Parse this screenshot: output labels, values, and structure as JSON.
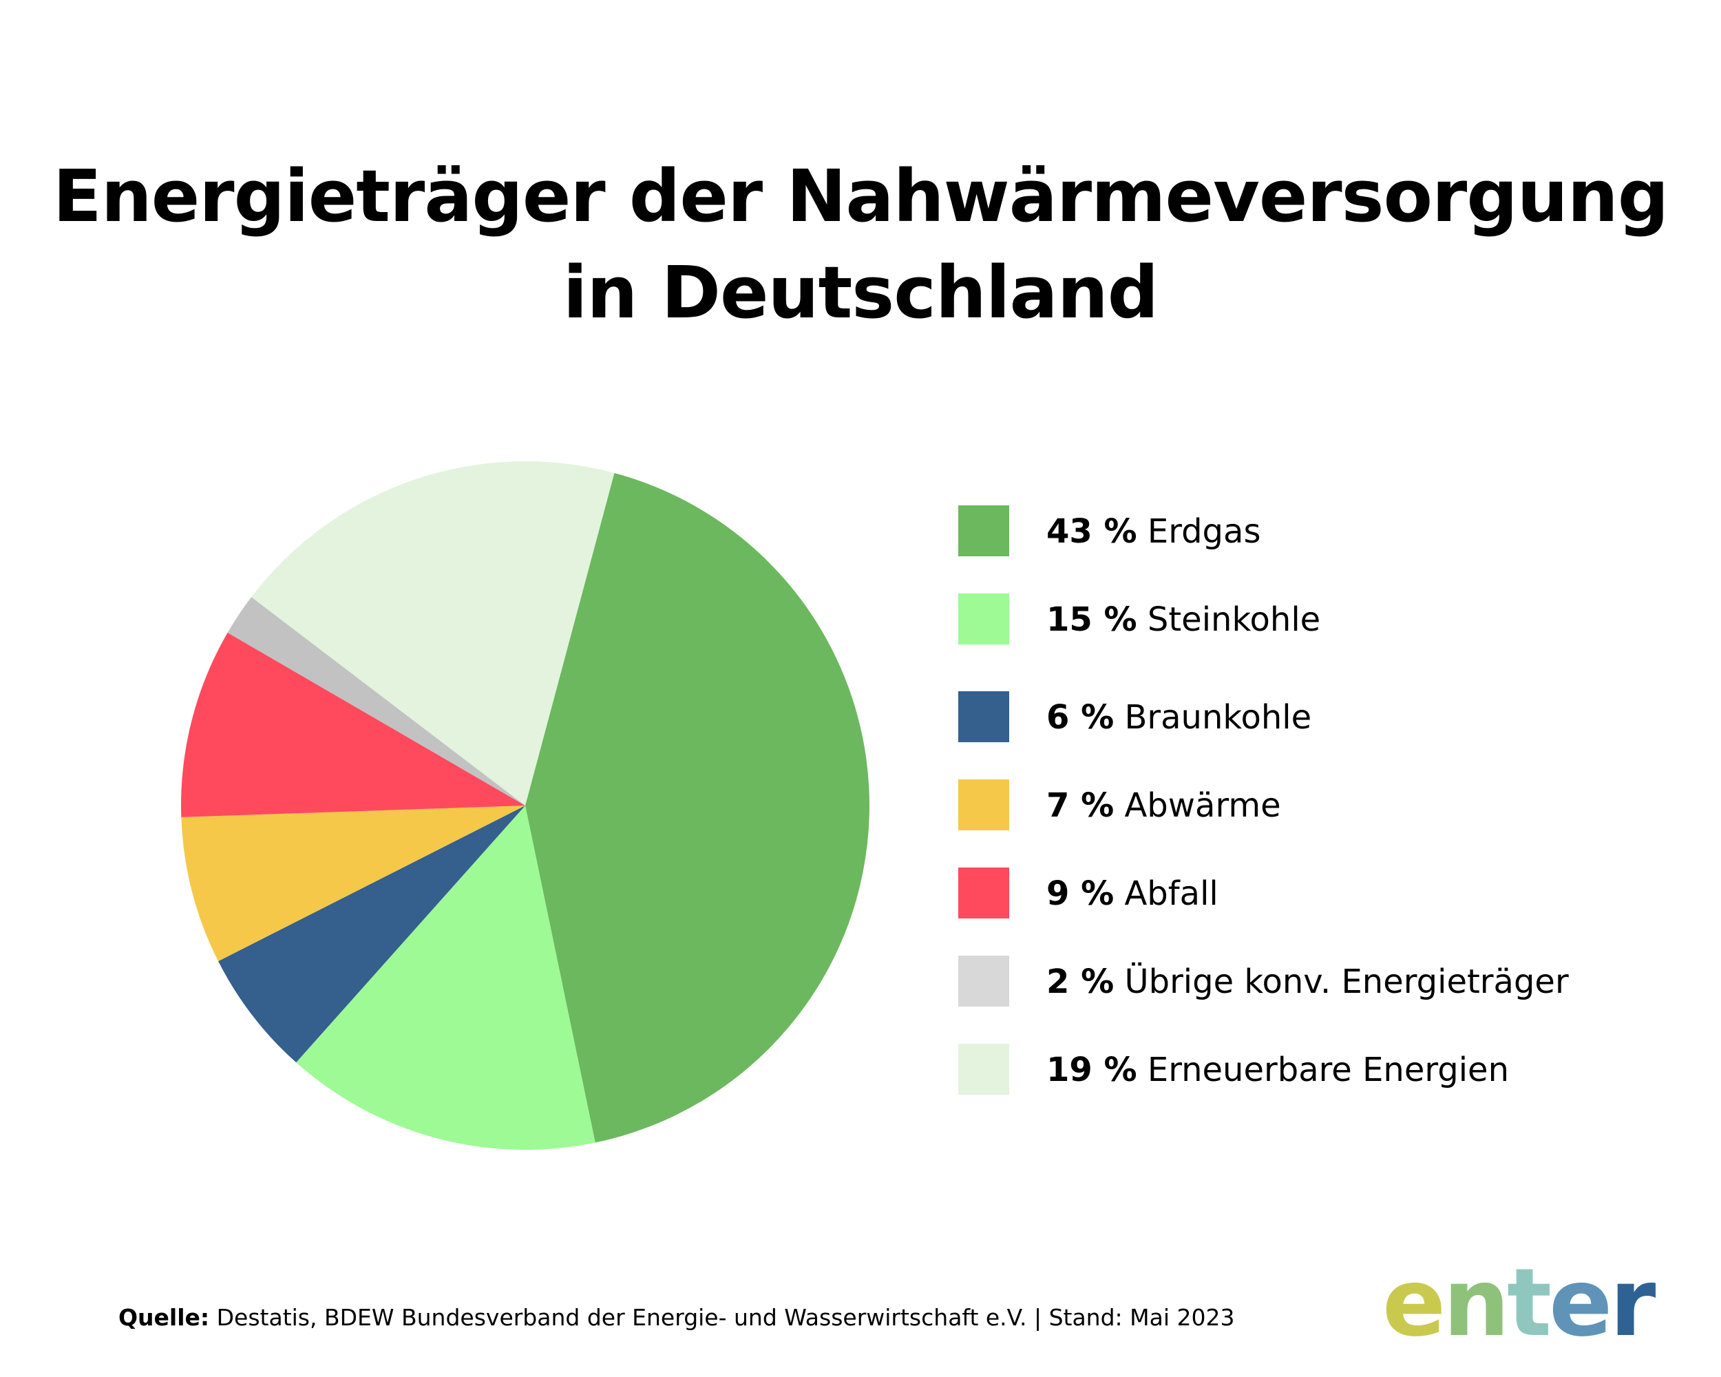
{
  "title_lines": [
    "Energieträger der Nahwärmeversorgung",
    "in Deutschland"
  ],
  "chart_data": {
    "type": "pie",
    "title": "Energieträger der Nahwärmeversorgung in Deutschland",
    "unit": "%",
    "slices": [
      {
        "label": "Erdgas",
        "value": 43,
        "pct_text": "43 %",
        "color": "#6cb85e"
      },
      {
        "label": "Steinkohle",
        "value": 15,
        "pct_text": "15 %",
        "color": "#9dfa95"
      },
      {
        "label": "Braunkohle",
        "value": 6,
        "pct_text": "6 %",
        "color": "#355f8d"
      },
      {
        "label": "Abwärme",
        "value": 7,
        "pct_text": "7 %",
        "color": "#f5c84a"
      },
      {
        "label": "Abfall",
        "value": 9,
        "pct_text": "9 %",
        "color": "#ff4a5e"
      },
      {
        "label": "Übrige konv. Energieträger",
        "value": 2,
        "pct_text": "2 %",
        "color": "#c2c2c2",
        "legend_color": "#d9d8d9"
      },
      {
        "label": "Erneuerbare Energien",
        "value": 19,
        "pct_text": "19 %",
        "color": "#e3f3de"
      }
    ],
    "legend_position": "right"
  },
  "footer": {
    "source_key": "Quelle:",
    "source_text": " Destatis, BDEW Bundesverband der Energie- und Wasserwirtschaft e.V. | Stand: Mai 2023"
  },
  "logo": {
    "letters": [
      "e",
      "n",
      "t",
      "e",
      "r"
    ],
    "colors": [
      "#c9c94e",
      "#8ec27a",
      "#8fc7bf",
      "#5f94b8",
      "#2f6294"
    ]
  }
}
